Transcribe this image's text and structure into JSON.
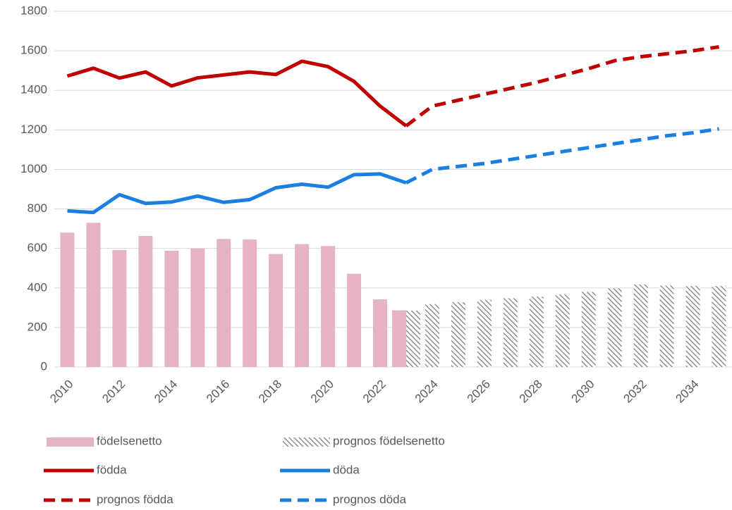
{
  "chart_data": {
    "type": "bar",
    "categories": [
      "2010",
      null,
      "2012",
      null,
      "2014",
      null,
      "2016",
      null,
      "2018",
      null,
      "2020",
      null,
      "2022",
      null,
      "2024",
      null,
      "2026",
      null,
      "2028",
      null,
      "2030",
      null,
      "2032",
      null,
      "2034",
      null
    ],
    "series": [
      {
        "name": "födelsenetto",
        "type": "bar",
        "color": "#e6b3c3",
        "values": [
          680,
          730,
          592,
          663,
          588,
          600,
          648,
          645,
          572,
          622,
          612,
          472,
          342,
          287,
          null,
          null,
          null,
          null,
          null,
          null,
          null,
          null,
          null,
          null,
          null,
          null
        ]
      },
      {
        "name": "prognos födelsenetto",
        "type": "bar",
        "style": "hatched",
        "color": "#808080",
        "values": [
          null,
          null,
          null,
          null,
          null,
          null,
          null,
          null,
          null,
          null,
          null,
          null,
          null,
          285,
          318,
          328,
          340,
          348,
          356,
          368,
          380,
          398,
          418,
          412,
          410,
          410
        ]
      },
      {
        "name": "födda",
        "type": "line",
        "color": "#c00000",
        "values": [
          1472,
          1512,
          1462,
          1493,
          1422,
          1463,
          1478,
          1493,
          1480,
          1547,
          1520,
          1445,
          1320,
          1220,
          null,
          null,
          null,
          null,
          null,
          null,
          null,
          null,
          null,
          null,
          null,
          null
        ]
      },
      {
        "name": "döda",
        "type": "line",
        "color": "#1a7fe0",
        "values": [
          790,
          782,
          872,
          828,
          835,
          865,
          833,
          847,
          907,
          925,
          910,
          973,
          977,
          932,
          null,
          null,
          null,
          null,
          null,
          null,
          null,
          null,
          null,
          null,
          null,
          null
        ]
      },
      {
        "name": "prognos födda",
        "type": "line",
        "style": "dashed",
        "color": "#c00000",
        "values": [
          null,
          null,
          null,
          null,
          null,
          null,
          null,
          null,
          null,
          null,
          null,
          null,
          null,
          1220,
          1320,
          1350,
          1380,
          1410,
          1440,
          1475,
          1510,
          1550,
          1570,
          1585,
          1600,
          1620
        ]
      },
      {
        "name": "prognos döda",
        "type": "line",
        "style": "dashed",
        "color": "#1a7fe0",
        "values": [
          null,
          null,
          null,
          null,
          null,
          null,
          null,
          null,
          null,
          null,
          null,
          null,
          null,
          932,
          1000,
          1015,
          1030,
          1050,
          1070,
          1090,
          1110,
          1130,
          1150,
          1170,
          1185,
          1205
        ]
      }
    ],
    "ylim": [
      0,
      1800
    ],
    "yticks": [
      0,
      200,
      400,
      600,
      800,
      1000,
      1200,
      1400,
      1600,
      1800
    ],
    "grid": true,
    "legend": "bottom"
  }
}
